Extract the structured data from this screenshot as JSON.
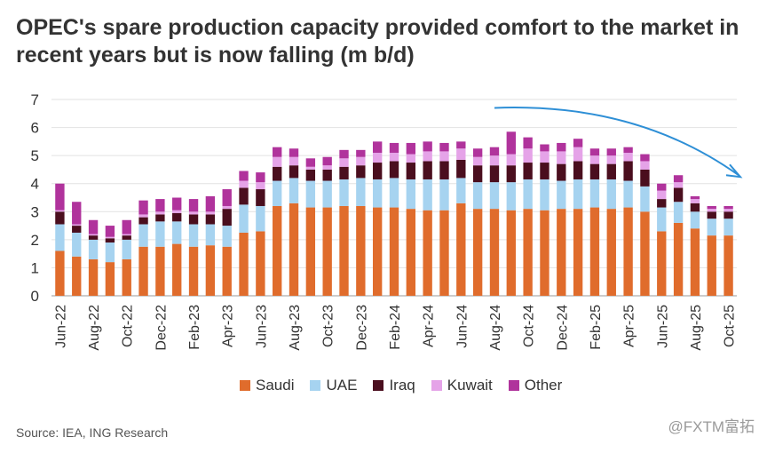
{
  "title_lines": [
    "OPEC's spare production capacity provided comfort to the market in",
    "recent years but is now falling (m b/d)"
  ],
  "source": "Source: IEA, ING Research",
  "watermark": "@FXTM富拓",
  "colors": {
    "Saudi": "#e06c2c",
    "UAE": "#a6d3f0",
    "Iraq": "#4a0e1e",
    "Kuwait": "#e5a3e8",
    "Other": "#b0339c",
    "axis_text": "#333333",
    "grid": "#e2e2e2",
    "arrow": "#2e8fd6"
  },
  "chart_data": {
    "type": "bar",
    "stacked": true,
    "title": "OPEC's spare production capacity provided comfort to the market in recent years but is now falling (m b/d)",
    "ylabel": "m b/d",
    "ylim": [
      0,
      7
    ],
    "yticks": [
      0,
      1,
      2,
      3,
      4,
      5,
      6,
      7
    ],
    "grid": true,
    "legend_position": "bottom",
    "categories": [
      "Jun-22",
      "Jul-22",
      "Aug-22",
      "Sep-22",
      "Oct-22",
      "Nov-22",
      "Dec-22",
      "Jan-23",
      "Feb-23",
      "Mar-23",
      "Apr-23",
      "May-23",
      "Jun-23",
      "Jul-23",
      "Aug-23",
      "Sep-23",
      "Oct-23",
      "Nov-23",
      "Dec-23",
      "Jan-24",
      "Feb-24",
      "Mar-24",
      "Apr-24",
      "May-24",
      "Jun-24",
      "Jul-24",
      "Aug-24",
      "Sep-24",
      "Oct-24",
      "Nov-24",
      "Dec-24",
      "Jan-25",
      "Feb-25",
      "Mar-25",
      "Apr-25",
      "May-25",
      "Jun-25",
      "Jul-25",
      "Aug-25",
      "Sep-25",
      "Oct-25"
    ],
    "tick_labels": [
      "Jun-22",
      "Aug-22",
      "Oct-22",
      "Dec-22",
      "Feb-23",
      "Apr-23",
      "Jun-23",
      "Aug-23",
      "Oct-23",
      "Dec-23",
      "Feb-24",
      "Apr-24",
      "Jun-24",
      "Aug-24",
      "Oct-24",
      "Dec-24",
      "Feb-25",
      "Apr-25",
      "Jun-25",
      "Aug-25",
      "Oct-25"
    ],
    "series": [
      {
        "name": "Saudi",
        "values": [
          1.6,
          1.4,
          1.3,
          1.2,
          1.3,
          1.75,
          1.75,
          1.85,
          1.75,
          1.8,
          1.75,
          2.25,
          2.3,
          3.2,
          3.3,
          3.15,
          3.15,
          3.2,
          3.2,
          3.15,
          3.15,
          3.1,
          3.05,
          3.05,
          3.3,
          3.1,
          3.1,
          3.05,
          3.1,
          3.05,
          3.1,
          3.1,
          3.15,
          3.1,
          3.15,
          3.0,
          2.3,
          2.6,
          2.4,
          2.15,
          2.15
        ]
      },
      {
        "name": "UAE",
        "values": [
          0.95,
          0.85,
          0.7,
          0.7,
          0.7,
          0.8,
          0.9,
          0.8,
          0.8,
          0.75,
          0.75,
          1.0,
          0.9,
          0.9,
          0.9,
          0.95,
          0.95,
          0.95,
          1.0,
          1.0,
          1.05,
          1.05,
          1.1,
          1.1,
          0.9,
          0.95,
          0.95,
          1.0,
          1.05,
          1.1,
          1.0,
          1.05,
          1.0,
          1.05,
          0.95,
          0.9,
          0.85,
          0.75,
          0.6,
          0.6,
          0.6
        ]
      },
      {
        "name": "Iraq",
        "values": [
          0.45,
          0.25,
          0.15,
          0.15,
          0.15,
          0.25,
          0.25,
          0.3,
          0.35,
          0.35,
          0.6,
          0.6,
          0.6,
          0.5,
          0.45,
          0.4,
          0.4,
          0.45,
          0.45,
          0.6,
          0.6,
          0.6,
          0.65,
          0.65,
          0.65,
          0.6,
          0.6,
          0.6,
          0.6,
          0.6,
          0.6,
          0.65,
          0.55,
          0.55,
          0.7,
          0.6,
          0.3,
          0.5,
          0.3,
          0.25,
          0.25
        ]
      },
      {
        "name": "Kuwait",
        "values": [
          0.05,
          0.05,
          0.05,
          0.05,
          0.05,
          0.1,
          0.1,
          0.1,
          0.1,
          0.1,
          0.1,
          0.25,
          0.25,
          0.35,
          0.3,
          0.1,
          0.15,
          0.3,
          0.3,
          0.35,
          0.3,
          0.3,
          0.35,
          0.35,
          0.4,
          0.3,
          0.35,
          0.4,
          0.5,
          0.4,
          0.45,
          0.5,
          0.3,
          0.3,
          0.3,
          0.3,
          0.3,
          0.2,
          0.15,
          0.1,
          0.1
        ]
      },
      {
        "name": "Other",
        "values": [
          0.95,
          0.8,
          0.5,
          0.4,
          0.5,
          0.5,
          0.45,
          0.45,
          0.45,
          0.55,
          0.6,
          0.35,
          0.35,
          0.35,
          0.3,
          0.3,
          0.3,
          0.3,
          0.25,
          0.4,
          0.35,
          0.4,
          0.35,
          0.3,
          0.25,
          0.3,
          0.3,
          0.8,
          0.4,
          0.25,
          0.3,
          0.3,
          0.25,
          0.25,
          0.2,
          0.25,
          0.25,
          0.25,
          0.1,
          0.1,
          0.1
        ]
      }
    ],
    "annotations": [
      {
        "type": "arrow",
        "description": "downward trend arrow from Aug-24 to Oct-25"
      }
    ]
  }
}
